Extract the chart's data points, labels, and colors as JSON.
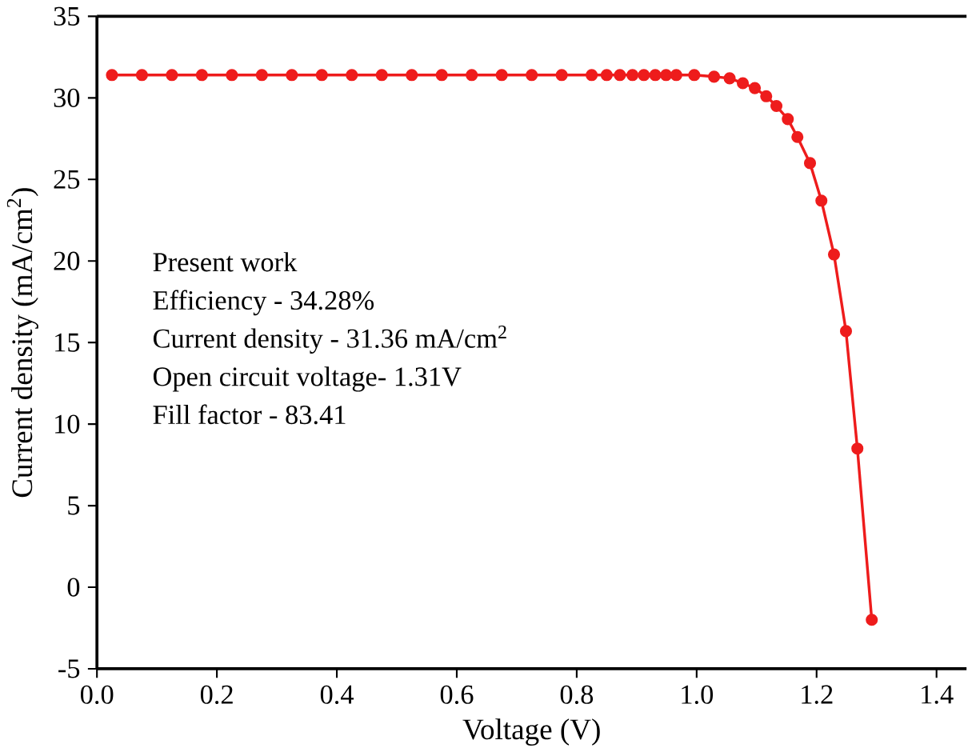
{
  "chart_data": {
    "type": "line",
    "xlabel": "Voltage (V)",
    "ylabel": "Current density (mA/cm$^{2}$)",
    "xlim": [
      0,
      1.45
    ],
    "ylim": [
      -5,
      35
    ],
    "xticks": [
      {
        "value": 0,
        "label": "0.0"
      },
      0.2,
      0.4,
      0.6,
      0.8,
      {
        "value": 1,
        "label": "1.0"
      },
      1.2,
      1.4
    ],
    "yticks": [
      -5,
      0,
      5,
      10,
      15,
      20,
      25,
      30,
      35
    ],
    "marker": "circle",
    "line_style": "solid",
    "grid": false,
    "series": [
      {
        "color": "#ee1c1c",
        "x": [
          0.025,
          0.075,
          0.125,
          0.175,
          0.225,
          0.275,
          0.325,
          0.375,
          0.425,
          0.475,
          0.525,
          0.575,
          0.625,
          0.675,
          0.725,
          0.775,
          0.825,
          0.85,
          0.872,
          0.893,
          0.912,
          0.931,
          0.949,
          0.966,
          0.996,
          1.029,
          1.055,
          1.077,
          1.097,
          1.116,
          1.133,
          1.152,
          1.168,
          1.189,
          1.208,
          1.229,
          1.249,
          1.268,
          1.292
        ],
        "values": [
          31.4,
          31.4,
          31.4,
          31.4,
          31.4,
          31.4,
          31.4,
          31.4,
          31.4,
          31.4,
          31.4,
          31.4,
          31.4,
          31.4,
          31.4,
          31.4,
          31.4,
          31.4,
          31.4,
          31.4,
          31.4,
          31.4,
          31.4,
          31.4,
          31.4,
          31.3,
          31.2,
          30.9,
          30.6,
          30.1,
          29.5,
          28.7,
          27.6,
          26.0,
          23.7,
          20.4,
          15.7,
          8.5,
          -2.0
        ]
      }
    ],
    "annotations": [
      "Present work",
      "Efficiency - 34.28%",
      "Current density - 31.36 mA/cm$^{2}$",
      "Open circuit voltage- 1.31V",
      "Fill factor - 83.41"
    ]
  }
}
